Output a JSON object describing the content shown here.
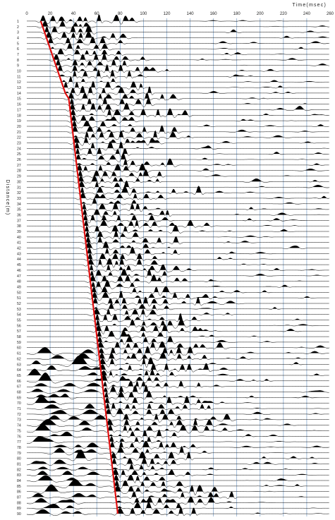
{
  "chart_data": {
    "type": "line",
    "title": "",
    "xlabel": "Time(msec)",
    "ylabel": "Distance(m)",
    "xlim": [
      0,
      260
    ],
    "x_ticks": [
      "0",
      "20",
      "40",
      "60",
      "80",
      "100",
      "120",
      "140",
      "160",
      "180",
      "200",
      "220",
      "240",
      "260"
    ],
    "traces": [
      "1",
      "2",
      "3",
      "4",
      "5",
      "6",
      "7",
      "8",
      "9",
      "10",
      "11",
      "12",
      "13",
      "14",
      "15",
      "16",
      "17",
      "18",
      "19",
      "20",
      "21",
      "22",
      "23",
      "24",
      "25",
      "26",
      "27",
      "28",
      "29",
      "30",
      "31",
      "32",
      "33",
      "34",
      "35",
      "36",
      "37",
      "38",
      "39",
      "40",
      "41",
      "42",
      "43",
      "44",
      "45",
      "46",
      "47",
      "48",
      "49",
      "50",
      "51",
      "52",
      "53",
      "54",
      "55",
      "56",
      "57",
      "58",
      "59",
      "60",
      "61",
      "62",
      "63",
      "64",
      "65",
      "66",
      "67",
      "68",
      "69",
      "70",
      "71",
      "72",
      "73",
      "74",
      "75",
      "76",
      "77",
      "78",
      "79",
      "80",
      "81",
      "82",
      "83",
      "84",
      "85",
      "86",
      "87",
      "88",
      "89",
      "90"
    ],
    "grid": true,
    "colors": {
      "traces": "#000000",
      "grid": "#7aa0c8",
      "pick_line": "#e01010"
    },
    "series": [
      {
        "type": "line",
        "x": [
          12,
          33,
          36,
          78
        ],
        "y": [
          1,
          14,
          15,
          90
        ]
      }
    ]
  }
}
